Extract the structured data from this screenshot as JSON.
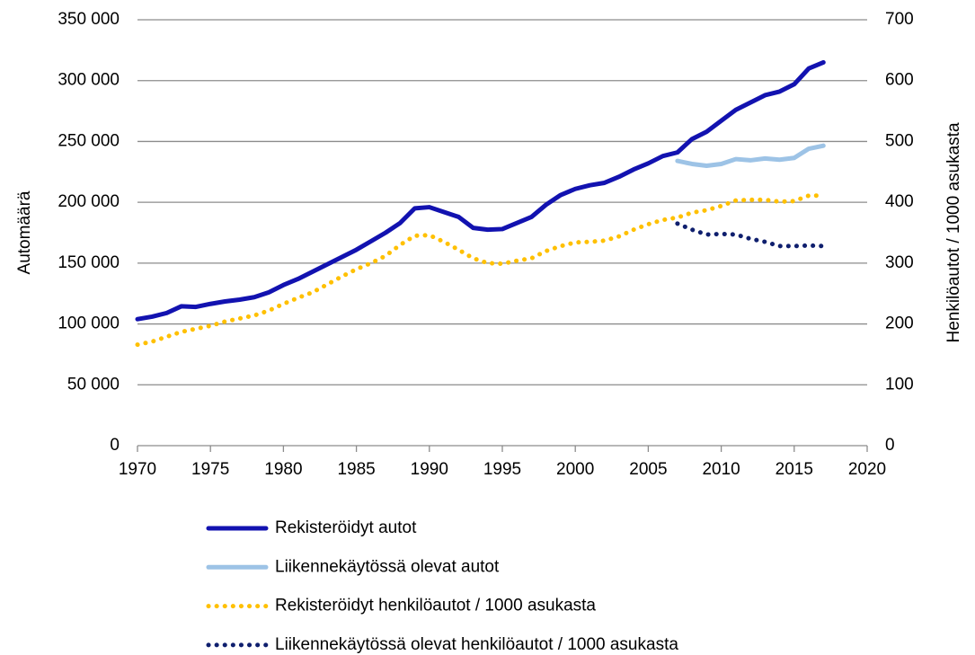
{
  "chart_data": {
    "type": "line",
    "y_label": "Automäärä",
    "y2_label": "Henkilöautot / 1000 asukasta",
    "x": [
      1970,
      1971,
      1972,
      1973,
      1974,
      1975,
      1976,
      1977,
      1978,
      1979,
      1980,
      1981,
      1982,
      1983,
      1984,
      1985,
      1986,
      1987,
      1988,
      1989,
      1990,
      1991,
      1992,
      1993,
      1994,
      1995,
      1996,
      1997,
      1998,
      1999,
      2000,
      2001,
      2002,
      2003,
      2004,
      2005,
      2006,
      2007,
      2008,
      2009,
      2010,
      2011,
      2012,
      2013,
      2014,
      2015,
      2016,
      2017
    ],
    "xlim": [
      1970,
      2020
    ],
    "xticks": [
      1970,
      1975,
      1980,
      1985,
      1990,
      1995,
      2000,
      2005,
      2010,
      2015,
      2020
    ],
    "ylim": [
      0,
      350000
    ],
    "yticks": [
      {
        "value": 0,
        "label": "0"
      },
      {
        "value": 50000,
        "label": "50 000"
      },
      {
        "value": 100000,
        "label": "100 000"
      },
      {
        "value": 150000,
        "label": "150 000"
      },
      {
        "value": 200000,
        "label": "200 000"
      },
      {
        "value": 250000,
        "label": "250 000"
      },
      {
        "value": 300000,
        "label": "300 000"
      },
      {
        "value": 350000,
        "label": "350 000"
      }
    ],
    "y2lim": [
      0,
      700
    ],
    "y2ticks": [
      0,
      100,
      200,
      300,
      400,
      500,
      600,
      700
    ],
    "grid": true,
    "legend": "bottom",
    "series": [
      {
        "name": "Rekisteröidyt autot",
        "color": "#1212b0",
        "dash": "solid",
        "values": [
          104000,
          106000,
          109000,
          114500,
          114000,
          116500,
          118500,
          120000,
          122000,
          126000,
          132000,
          137000,
          143000,
          149000,
          155000,
          161000,
          168000,
          175000,
          183000,
          195000,
          196000,
          192000,
          188000,
          179000,
          177500,
          178000,
          183000,
          188000,
          198000,
          206000,
          211000,
          214000,
          216000,
          221000,
          227000,
          232000,
          238000,
          241000,
          252000,
          258000,
          267000,
          276000,
          282000,
          288000,
          291000,
          297000,
          310000,
          315000
        ]
      },
      {
        "name": "Liikennekäytössä olevat autot",
        "color": "#9dc3e6",
        "dash": "solid",
        "values": [
          null,
          null,
          null,
          null,
          null,
          null,
          null,
          null,
          null,
          null,
          null,
          null,
          null,
          null,
          null,
          null,
          null,
          null,
          null,
          null,
          null,
          null,
          null,
          null,
          null,
          null,
          null,
          null,
          null,
          null,
          null,
          null,
          null,
          null,
          null,
          null,
          null,
          234000,
          231500,
          230000,
          231500,
          235500,
          234500,
          236000,
          235000,
          236500,
          244000,
          246500
        ]
      },
      {
        "name": "Rekisteröidyt henkilöautot / 1000 asukasta",
        "color": "#ffc000",
        "dash": "dotted",
        "axis": "y2",
        "values": [
          166,
          171,
          179,
          187,
          192,
          197,
          204,
          209,
          214,
          222,
          233,
          243,
          252,
          265,
          278,
          290,
          300,
          312,
          330,
          345,
          346,
          335,
          322,
          308,
          300,
          299,
          304,
          308,
          320,
          328,
          334,
          335,
          337,
          344,
          355,
          364,
          371,
          375,
          383,
          387,
          394,
          403,
          404,
          404,
          401,
          402,
          411,
          411
        ]
      },
      {
        "name": "Liikennekäytössä olevat henkilöautot / 1000 asukasta",
        "color": "#0f1f6e",
        "dash": "dotted",
        "axis": "y2",
        "values": [
          null,
          null,
          null,
          null,
          null,
          null,
          null,
          null,
          null,
          null,
          null,
          null,
          null,
          null,
          null,
          null,
          null,
          null,
          null,
          null,
          null,
          null,
          null,
          null,
          null,
          null,
          null,
          null,
          null,
          null,
          null,
          null,
          null,
          null,
          null,
          null,
          null,
          365,
          355,
          347,
          348,
          347,
          340,
          335,
          328,
          328,
          329,
          328
        ]
      }
    ]
  }
}
